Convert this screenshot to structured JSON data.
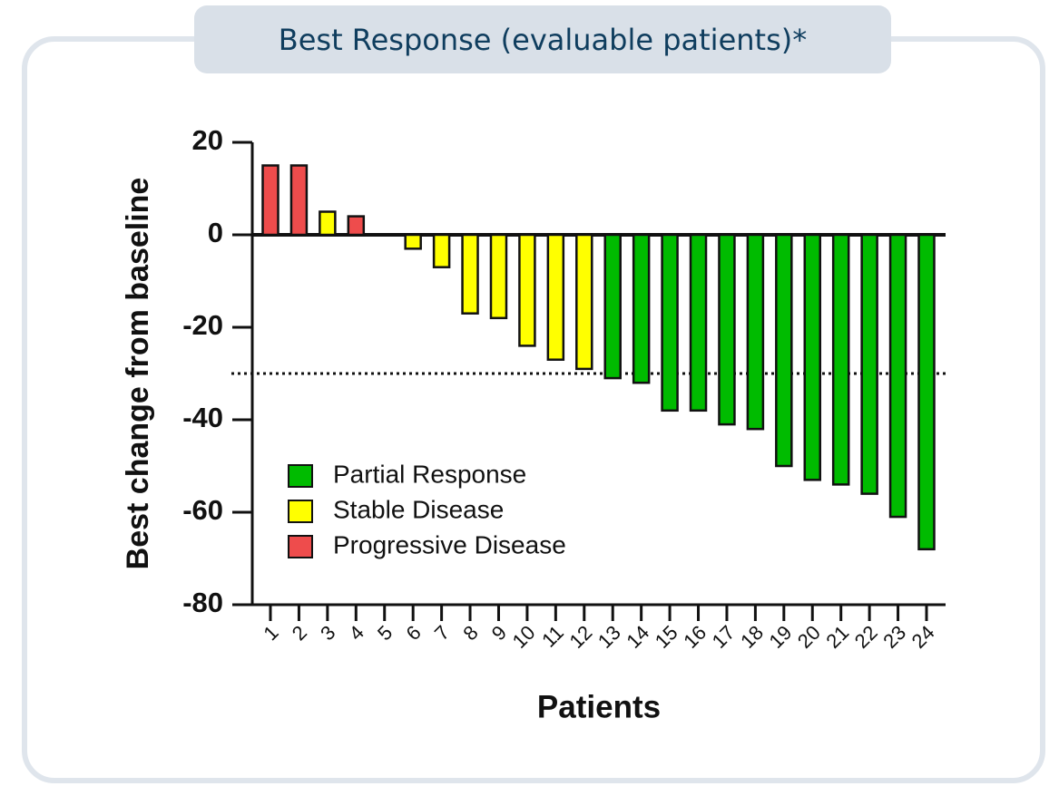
{
  "chart_data": {
    "type": "bar",
    "title": "Best Response (evaluable patients)*",
    "ylabel": "Best change from baseline",
    "xlabel": "Patients",
    "categories": [
      "1",
      "2",
      "3",
      "4",
      "5",
      "6",
      "7",
      "8",
      "9",
      "10",
      "11",
      "12",
      "13",
      "14",
      "15",
      "16",
      "17",
      "18",
      "19",
      "20",
      "21",
      "22",
      "23",
      "24"
    ],
    "series": [
      {
        "name": "Partial Response",
        "color": "#00bb00",
        "values": [
          null,
          null,
          null,
          null,
          null,
          null,
          null,
          null,
          null,
          null,
          null,
          null,
          -31,
          -32,
          -38,
          -38,
          -41,
          -42,
          -50,
          -53,
          -54,
          -56,
          -61,
          -68
        ]
      },
      {
        "name": "Stable Disease",
        "color": "#ffff00",
        "values": [
          null,
          null,
          5,
          null,
          null,
          -3,
          -7,
          -17,
          -18,
          -24,
          -27,
          -29,
          null,
          null,
          null,
          null,
          null,
          null,
          null,
          null,
          null,
          null,
          null,
          null
        ]
      },
      {
        "name": "Progressive Disease",
        "color": "#ee4c4c",
        "values": [
          15,
          15,
          null,
          4,
          null,
          null,
          null,
          null,
          null,
          null,
          null,
          null,
          null,
          null,
          null,
          null,
          null,
          null,
          null,
          null,
          null,
          null,
          null,
          null
        ]
      }
    ],
    "ylim": [
      -80,
      20
    ],
    "yticks": [
      -80,
      -60,
      -40,
      -20,
      0,
      20
    ],
    "reference_line": -30,
    "legend": "lower-left"
  }
}
